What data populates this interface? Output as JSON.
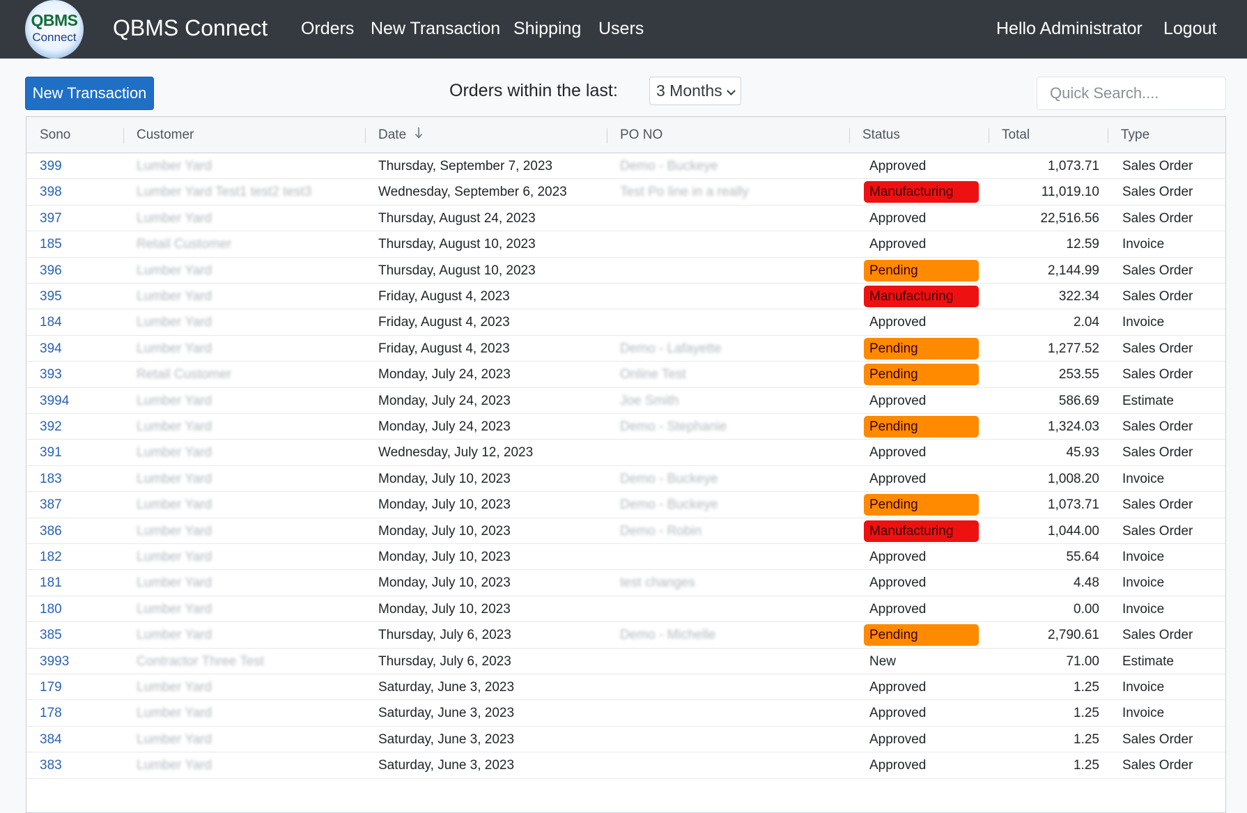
{
  "app": {
    "logo_line1": "QBMS",
    "logo_line2": "Connect",
    "brand": "QBMS Connect",
    "nav": [
      "Orders",
      "New Transaction",
      "Shipping",
      "Users"
    ],
    "greeting": "Hello Administrator",
    "logout": "Logout"
  },
  "toolbar": {
    "new_transaction": "New Transaction",
    "filter_label": "Orders within the last:",
    "filter_value": "3 Months",
    "search_placeholder": "Quick Search...."
  },
  "table": {
    "columns": [
      "Sono",
      "Customer",
      "Date",
      "PO NO",
      "Status",
      "Total",
      "Type"
    ],
    "sorted_column": "Date",
    "status_colors": {
      "Manufacturing": "#ee1111",
      "Pending": "#ff8a00"
    },
    "rows": [
      {
        "sono": "399",
        "customer": "Lumber Yard",
        "date": "Thursday, September 7, 2023",
        "po": "Demo - Buckeye",
        "status": "Approved",
        "total": "1,073.71",
        "type": "Sales Order"
      },
      {
        "sono": "398",
        "customer": "Lumber Yard Test1 test2 test3",
        "date": "Wednesday, September 6, 2023",
        "po": "Test Po line in a really",
        "status": "Manufacturing",
        "total": "11,019.10",
        "type": "Sales Order"
      },
      {
        "sono": "397",
        "customer": "Lumber Yard",
        "date": "Thursday, August 24, 2023",
        "po": "",
        "status": "Approved",
        "total": "22,516.56",
        "type": "Sales Order"
      },
      {
        "sono": "185",
        "customer": "Retail Customer",
        "date": "Thursday, August 10, 2023",
        "po": "",
        "status": "Approved",
        "total": "12.59",
        "type": "Invoice"
      },
      {
        "sono": "396",
        "customer": "Lumber Yard",
        "date": "Thursday, August 10, 2023",
        "po": "",
        "status": "Pending",
        "total": "2,144.99",
        "type": "Sales Order"
      },
      {
        "sono": "395",
        "customer": "Lumber Yard",
        "date": "Friday, August 4, 2023",
        "po": "",
        "status": "Manufacturing",
        "total": "322.34",
        "type": "Sales Order"
      },
      {
        "sono": "184",
        "customer": "Lumber Yard",
        "date": "Friday, August 4, 2023",
        "po": "",
        "status": "Approved",
        "total": "2.04",
        "type": "Invoice"
      },
      {
        "sono": "394",
        "customer": "Lumber Yard",
        "date": "Friday, August 4, 2023",
        "po": "Demo - Lafayette",
        "status": "Pending",
        "total": "1,277.52",
        "type": "Sales Order"
      },
      {
        "sono": "393",
        "customer": "Retail Customer",
        "date": "Monday, July 24, 2023",
        "po": "Online Test",
        "status": "Pending",
        "total": "253.55",
        "type": "Sales Order"
      },
      {
        "sono": "3994",
        "customer": "Lumber Yard",
        "date": "Monday, July 24, 2023",
        "po": "Joe Smith",
        "status": "Approved",
        "total": "586.69",
        "type": "Estimate"
      },
      {
        "sono": "392",
        "customer": "Lumber Yard",
        "date": "Monday, July 24, 2023",
        "po": "Demo - Stephanie",
        "status": "Pending",
        "total": "1,324.03",
        "type": "Sales Order"
      },
      {
        "sono": "391",
        "customer": "Lumber Yard",
        "date": "Wednesday, July 12, 2023",
        "po": "",
        "status": "Approved",
        "total": "45.93",
        "type": "Sales Order"
      },
      {
        "sono": "183",
        "customer": "Lumber Yard",
        "date": "Monday, July 10, 2023",
        "po": "Demo - Buckeye",
        "status": "Approved",
        "total": "1,008.20",
        "type": "Invoice"
      },
      {
        "sono": "387",
        "customer": "Lumber Yard",
        "date": "Monday, July 10, 2023",
        "po": "Demo - Buckeye",
        "status": "Pending",
        "total": "1,073.71",
        "type": "Sales Order"
      },
      {
        "sono": "386",
        "customer": "Lumber Yard",
        "date": "Monday, July 10, 2023",
        "po": "Demo - Robin",
        "status": "Manufacturing",
        "total": "1,044.00",
        "type": "Sales Order"
      },
      {
        "sono": "182",
        "customer": "Lumber Yard",
        "date": "Monday, July 10, 2023",
        "po": "",
        "status": "Approved",
        "total": "55.64",
        "type": "Invoice"
      },
      {
        "sono": "181",
        "customer": "Lumber Yard",
        "date": "Monday, July 10, 2023",
        "po": "test changes",
        "status": "Approved",
        "total": "4.48",
        "type": "Invoice"
      },
      {
        "sono": "180",
        "customer": "Lumber Yard",
        "date": "Monday, July 10, 2023",
        "po": "",
        "status": "Approved",
        "total": "0.00",
        "type": "Invoice"
      },
      {
        "sono": "385",
        "customer": "Lumber Yard",
        "date": "Thursday, July 6, 2023",
        "po": "Demo - Michelle",
        "status": "Pending",
        "total": "2,790.61",
        "type": "Sales Order"
      },
      {
        "sono": "3993",
        "customer": "Contractor Three Test",
        "date": "Thursday, July 6, 2023",
        "po": "",
        "status": "New",
        "total": "71.00",
        "type": "Estimate"
      },
      {
        "sono": "179",
        "customer": "Lumber Yard",
        "date": "Saturday, June 3, 2023",
        "po": "",
        "status": "Approved",
        "total": "1.25",
        "type": "Invoice"
      },
      {
        "sono": "178",
        "customer": "Lumber Yard",
        "date": "Saturday, June 3, 2023",
        "po": "",
        "status": "Approved",
        "total": "1.25",
        "type": "Invoice"
      },
      {
        "sono": "384",
        "customer": "Lumber Yard",
        "date": "Saturday, June 3, 2023",
        "po": "",
        "status": "Approved",
        "total": "1.25",
        "type": "Sales Order"
      },
      {
        "sono": "383",
        "customer": "Lumber Yard",
        "date": "Saturday, June 3, 2023",
        "po": "",
        "status": "Approved",
        "total": "1.25",
        "type": "Sales Order"
      }
    ]
  }
}
